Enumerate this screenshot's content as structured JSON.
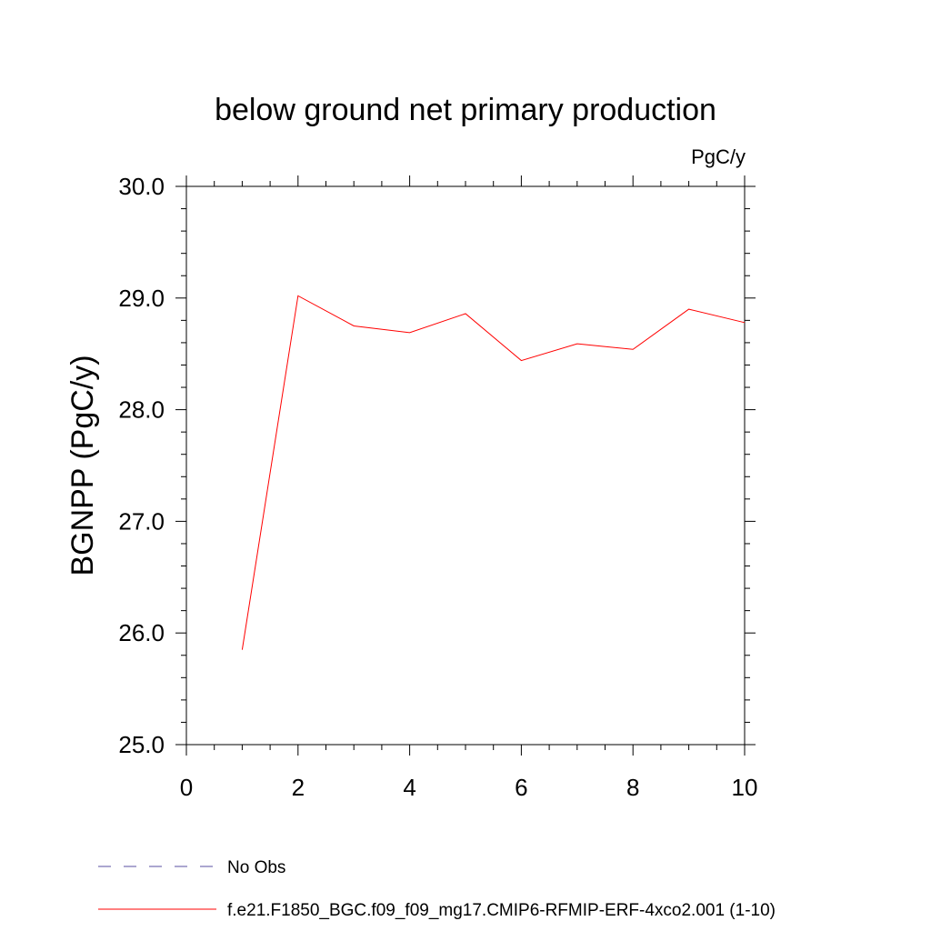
{
  "chart_data": {
    "type": "line",
    "title": "below ground net primary production",
    "units_label": "PgC/y",
    "ylabel": "BGNPP  (PgC/y)",
    "xlabel": "",
    "xlim": [
      0,
      10
    ],
    "ylim": [
      25.0,
      30.0
    ],
    "x_ticks": [
      0,
      2,
      4,
      6,
      8,
      10
    ],
    "x_tick_labels": [
      "0",
      "2",
      "4",
      "6",
      "8",
      "10"
    ],
    "y_ticks": [
      25.0,
      26.0,
      27.0,
      28.0,
      29.0,
      30.0
    ],
    "y_tick_labels": [
      "25.0",
      "26.0",
      "27.0",
      "28.0",
      "29.0",
      "30.0"
    ],
    "grid": false,
    "series": [
      {
        "name": "f.e21.F1850_BGC.f09_f09_mg17.CMIP6-RFMIP-ERF-4xco2.001 (1-10)",
        "color": "#ff0000",
        "style": "solid",
        "x": [
          1,
          2,
          3,
          4,
          5,
          6,
          7,
          8,
          9,
          10
        ],
        "values": [
          25.85,
          29.02,
          28.75,
          28.69,
          28.86,
          28.44,
          28.59,
          28.54,
          28.9,
          28.78
        ]
      }
    ],
    "legend": [
      {
        "label": "No Obs",
        "color": "#5a4fa0",
        "style": "dashed"
      },
      {
        "label": "f.e21.F1850_BGC.f09_f09_mg17.CMIP6-RFMIP-ERF-4xco2.001 (1-10)",
        "color": "#ff0000",
        "style": "solid"
      }
    ],
    "legend_position": "bottom-left"
  }
}
